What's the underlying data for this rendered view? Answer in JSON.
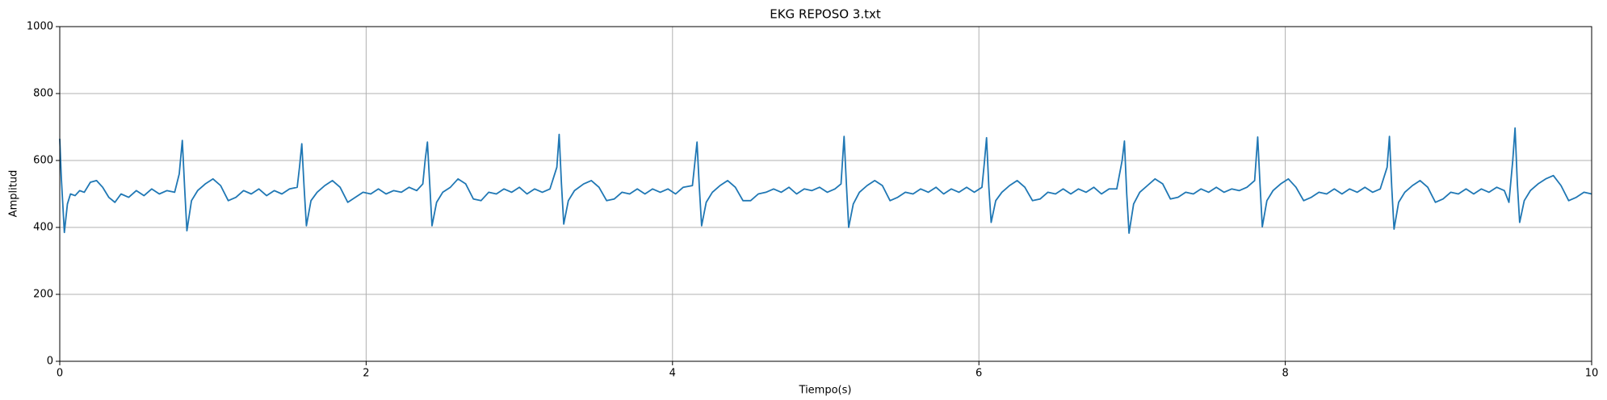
{
  "chart_data": {
    "type": "line",
    "title": "EKG REPOSO 3.txt",
    "x_label": "Tiempo(s)",
    "y_label": "Amplitud",
    "xlim": [
      0,
      10
    ],
    "xticks": [
      0,
      2,
      4,
      6,
      8,
      10
    ],
    "ylim": [
      0,
      1000
    ],
    "yticks": [
      0,
      200,
      400,
      600,
      800,
      1000
    ],
    "grid": true,
    "x": [
      0,
      0.01,
      0.03,
      0.05,
      0.07,
      0.1,
      0.13,
      0.16,
      0.2,
      0.24,
      0.28,
      0.32,
      0.36,
      0.4,
      0.45,
      0.5,
      0.55,
      0.6,
      0.65,
      0.7,
      0.75,
      0.78,
      0.8,
      0.815,
      0.83,
      0.86,
      0.9,
      0.95,
      1.0,
      1.05,
      1.1,
      1.15,
      1.2,
      1.25,
      1.3,
      1.35,
      1.4,
      1.45,
      1.5,
      1.55,
      1.565,
      1.58,
      1.595,
      1.61,
      1.64,
      1.68,
      1.73,
      1.78,
      1.83,
      1.88,
      1.93,
      1.98,
      2.03,
      2.08,
      2.13,
      2.18,
      2.23,
      2.28,
      2.33,
      2.37,
      2.385,
      2.4,
      2.415,
      2.43,
      2.46,
      2.5,
      2.55,
      2.6,
      2.65,
      2.7,
      2.75,
      2.8,
      2.85,
      2.9,
      2.95,
      3.0,
      3.05,
      3.1,
      3.15,
      3.2,
      3.245,
      3.26,
      3.275,
      3.29,
      3.32,
      3.36,
      3.42,
      3.47,
      3.52,
      3.57,
      3.62,
      3.67,
      3.72,
      3.77,
      3.82,
      3.87,
      3.92,
      3.97,
      4.02,
      4.07,
      4.13,
      4.145,
      4.16,
      4.175,
      4.19,
      4.22,
      4.26,
      4.31,
      4.36,
      4.41,
      4.46,
      4.51,
      4.56,
      4.61,
      4.66,
      4.71,
      4.76,
      4.81,
      4.86,
      4.91,
      4.96,
      5.01,
      5.06,
      5.1,
      5.12,
      5.135,
      5.15,
      5.18,
      5.22,
      5.27,
      5.32,
      5.37,
      5.42,
      5.47,
      5.52,
      5.57,
      5.62,
      5.67,
      5.72,
      5.77,
      5.82,
      5.87,
      5.92,
      5.97,
      6.02,
      6.035,
      6.05,
      6.065,
      6.08,
      6.11,
      6.15,
      6.2,
      6.25,
      6.3,
      6.35,
      6.4,
      6.45,
      6.5,
      6.55,
      6.6,
      6.65,
      6.7,
      6.75,
      6.8,
      6.85,
      6.9,
      6.935,
      6.95,
      6.965,
      6.98,
      7.01,
      7.05,
      7.1,
      7.15,
      7.2,
      7.25,
      7.3,
      7.35,
      7.4,
      7.45,
      7.5,
      7.55,
      7.6,
      7.65,
      7.7,
      7.75,
      7.8,
      7.82,
      7.835,
      7.85,
      7.88,
      7.92,
      7.97,
      8.02,
      8.07,
      8.12,
      8.17,
      8.22,
      8.27,
      8.32,
      8.37,
      8.42,
      8.47,
      8.52,
      8.57,
      8.62,
      8.665,
      8.68,
      8.695,
      8.71,
      8.74,
      8.78,
      8.83,
      8.88,
      8.93,
      8.98,
      9.03,
      9.08,
      9.13,
      9.18,
      9.23,
      9.28,
      9.33,
      9.38,
      9.43,
      9.46,
      9.485,
      9.5,
      9.515,
      9.53,
      9.56,
      9.6,
      9.65,
      9.7,
      9.75,
      9.8,
      9.85,
      9.9,
      9.95,
      10.0
    ],
    "series": [
      {
        "color": "#1f77b4",
        "values": [
          665,
          550,
          385,
          470,
          500,
          495,
          510,
          505,
          535,
          540,
          520,
          490,
          475,
          500,
          490,
          510,
          495,
          515,
          500,
          510,
          505,
          560,
          660,
          520,
          390,
          480,
          510,
          530,
          545,
          525,
          480,
          490,
          510,
          500,
          515,
          495,
          510,
          500,
          515,
          520,
          580,
          650,
          520,
          405,
          480,
          505,
          525,
          540,
          520,
          475,
          490,
          505,
          500,
          515,
          500,
          510,
          505,
          520,
          510,
          530,
          600,
          655,
          530,
          405,
          475,
          505,
          520,
          545,
          530,
          485,
          480,
          505,
          500,
          515,
          505,
          520,
          500,
          515,
          505,
          515,
          580,
          678,
          530,
          410,
          480,
          510,
          530,
          540,
          520,
          480,
          485,
          505,
          500,
          515,
          500,
          515,
          505,
          515,
          500,
          520,
          525,
          590,
          655,
          520,
          405,
          475,
          505,
          525,
          540,
          520,
          480,
          480,
          500,
          505,
          515,
          505,
          520,
          500,
          515,
          510,
          520,
          505,
          515,
          530,
          672,
          530,
          400,
          470,
          505,
          525,
          540,
          525,
          480,
          490,
          505,
          500,
          515,
          505,
          520,
          500,
          515,
          505,
          520,
          505,
          520,
          590,
          668,
          520,
          415,
          480,
          505,
          525,
          540,
          520,
          480,
          485,
          505,
          500,
          515,
          500,
          515,
          505,
          520,
          500,
          515,
          515,
          600,
          658,
          500,
          383,
          470,
          505,
          525,
          545,
          530,
          485,
          490,
          505,
          500,
          515,
          505,
          520,
          505,
          515,
          510,
          520,
          540,
          670,
          530,
          402,
          480,
          510,
          530,
          545,
          520,
          480,
          490,
          505,
          500,
          515,
          500,
          515,
          505,
          520,
          505,
          515,
          580,
          672,
          520,
          395,
          475,
          505,
          525,
          540,
          520,
          475,
          485,
          505,
          500,
          515,
          500,
          515,
          505,
          520,
          510,
          475,
          600,
          697,
          530,
          415,
          480,
          510,
          530,
          545,
          555,
          525,
          480,
          490,
          505,
          500
        ]
      }
    ]
  }
}
